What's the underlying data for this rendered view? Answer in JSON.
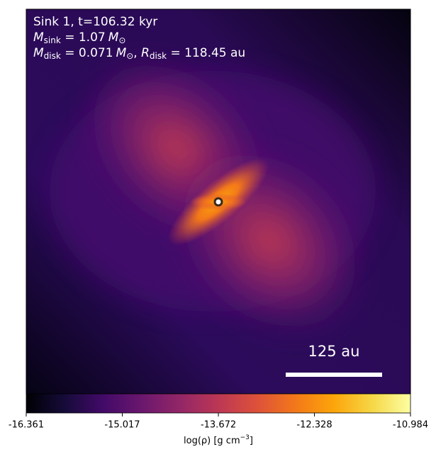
{
  "chart_data": {
    "type": "heatmap",
    "annotation": {
      "line1": "Sink 1, t=106.32 kyr",
      "m_sink": {
        "symbol": "M",
        "sub": "sink",
        "text": " = 1.07",
        "unit": "M",
        "unit_sub": "⊙"
      },
      "m_disk": {
        "symbol": "M",
        "sub": "disk",
        "text": " = 0.071",
        "unit": "M",
        "unit_sub": "⊙",
        "sep": ", ",
        "symbol2": "R",
        "sub2": "disk",
        "text2": " = 118.45 au"
      }
    },
    "scale_bar": "125 au",
    "colormap": "inferno",
    "clim": [
      -16.361,
      -10.984
    ],
    "cticks": [
      -16.361,
      -15.017,
      -13.672,
      -12.328,
      -10.984
    ],
    "colorbar_label": {
      "text": "log(ρ) [g cm",
      "sup": "−3",
      "end": "]"
    }
  }
}
